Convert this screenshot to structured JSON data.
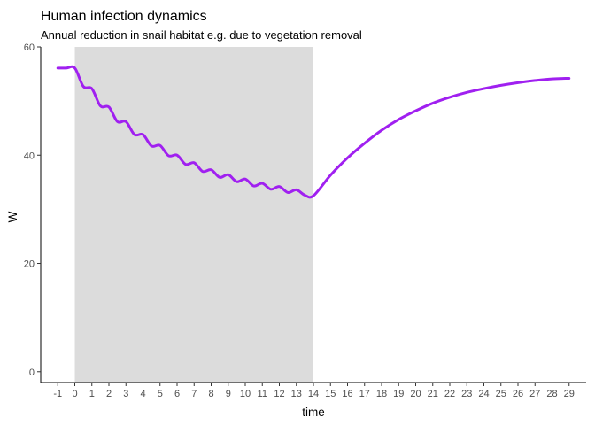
{
  "chart_data": {
    "type": "line",
    "title": "Human infection dynamics",
    "subtitle": "Annual reduction in snail habitat e.g. due to vegetation removal",
    "xlabel": "time",
    "ylabel": "W",
    "xlim": [
      -2,
      30
    ],
    "ylim": [
      -2,
      60
    ],
    "x_ticks": [
      -1,
      0,
      1,
      2,
      3,
      4,
      5,
      6,
      7,
      8,
      9,
      10,
      11,
      12,
      13,
      14,
      15,
      16,
      17,
      18,
      19,
      20,
      21,
      22,
      23,
      24,
      25,
      26,
      27,
      28,
      29
    ],
    "y_ticks": [
      0,
      20,
      40,
      60
    ],
    "grid": false,
    "shaded_region": {
      "x": [
        0,
        14
      ],
      "color": "#dcdcdc"
    },
    "series": [
      {
        "color": "#a020f0",
        "x": [
          -1,
          -0.5,
          0,
          0.5,
          1,
          1.5,
          2,
          2.5,
          3,
          3.5,
          4,
          4.5,
          5,
          5.5,
          6,
          6.5,
          7,
          7.5,
          8,
          8.5,
          9,
          9.5,
          10,
          10.5,
          11,
          11.5,
          12,
          12.5,
          13,
          13.5,
          14,
          15,
          16,
          17,
          18,
          19,
          20,
          21,
          22,
          23,
          24,
          25,
          26,
          27,
          28,
          29
        ],
        "values": [
          56.1,
          56.1,
          56.1,
          52.7,
          52.3,
          49.1,
          48.9,
          46.2,
          46.2,
          43.8,
          43.8,
          41.7,
          41.8,
          39.9,
          40.0,
          38.3,
          38.6,
          37.0,
          37.3,
          35.9,
          36.4,
          35.1,
          35.6,
          34.3,
          34.8,
          33.7,
          34.2,
          33.1,
          33.6,
          32.6,
          32.5,
          36.3,
          39.5,
          42.2,
          44.6,
          46.6,
          48.2,
          49.6,
          50.7,
          51.6,
          52.3,
          52.9,
          53.4,
          53.8,
          54.1,
          54.2
        ]
      }
    ]
  }
}
